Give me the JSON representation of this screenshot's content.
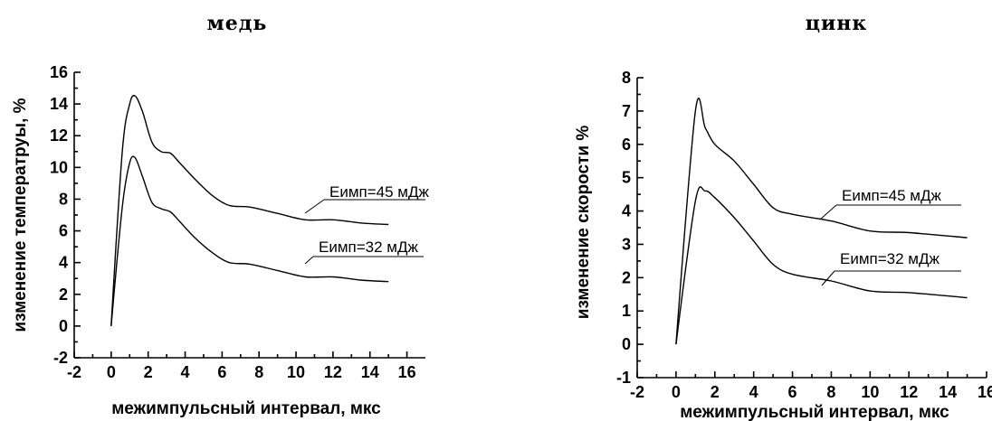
{
  "chart_data": [
    {
      "type": "line",
      "title": "медь",
      "xlabel": "межимпульсный интервал, мкс",
      "ylabel": "изменение температруы, %",
      "xlim": [
        -2,
        17
      ],
      "ylim": [
        -2,
        16
      ],
      "xticks": [
        -2,
        0,
        2,
        4,
        6,
        8,
        10,
        12,
        14,
        16
      ],
      "yticks": [
        -2,
        0,
        2,
        4,
        6,
        8,
        10,
        12,
        14,
        16
      ],
      "ytick_labels": [
        "-2",
        "0",
        "2",
        "4",
        "6",
        "8",
        "10",
        "12",
        "14",
        "16"
      ],
      "series": [
        {
          "name": "Еимп=45 мДж",
          "x": [
            0,
            0.6,
            1.0,
            1.3,
            1.7,
            2.2,
            2.7,
            3.2,
            3.7,
            4.5,
            5.5,
            6.4,
            7.5,
            9.0,
            10.5,
            12.0,
            13.5,
            15.0
          ],
          "y": [
            0,
            11.0,
            14.0,
            14.5,
            13.5,
            11.6,
            11.0,
            10.9,
            10.3,
            9.3,
            8.2,
            7.6,
            7.5,
            7.1,
            6.7,
            6.7,
            6.5,
            6.4
          ]
        },
        {
          "name": "Еимп=32 мДж",
          "x": [
            0,
            0.6,
            1.0,
            1.3,
            1.7,
            2.2,
            2.7,
            3.2,
            3.7,
            4.5,
            5.5,
            6.4,
            7.5,
            9.0,
            10.5,
            12.0,
            13.5,
            15.0
          ],
          "y": [
            0,
            7.5,
            10.3,
            10.6,
            9.4,
            7.8,
            7.4,
            7.2,
            6.6,
            5.6,
            4.6,
            4.0,
            3.9,
            3.5,
            3.1,
            3.1,
            2.9,
            2.8
          ]
        }
      ],
      "annotations": [
        {
          "text": "Еимп=45 мДж",
          "x": 14.0,
          "y": 8.6
        },
        {
          "text": "Еимп=32 мДж",
          "x": 13.6,
          "y": 5.1
        }
      ]
    },
    {
      "type": "line",
      "title": "цинк",
      "xlabel": "межимпульсный интервал, мкс",
      "ylabel": "изменение скорости %",
      "xlim": [
        -2,
        16
      ],
      "ylim": [
        -1,
        8
      ],
      "xticks": [
        -2,
        0,
        2,
        4,
        6,
        8,
        10,
        12,
        14,
        16
      ],
      "yticks": [
        -1,
        0,
        1,
        2,
        3,
        4,
        5,
        6,
        7,
        8
      ],
      "ytick_labels": [
        "-1",
        "0",
        "1",
        "2",
        "3",
        "4",
        "5",
        "6",
        "7",
        "8"
      ],
      "series": [
        {
          "name": "Еимп=45 мДж",
          "x": [
            0,
            1.0,
            1.5,
            2.0,
            3.0,
            4.0,
            5.0,
            6.0,
            8.0,
            10.0,
            12.0,
            15.0
          ],
          "y": [
            0,
            7.0,
            6.5,
            6.0,
            5.5,
            4.8,
            4.1,
            3.9,
            3.7,
            3.4,
            3.35,
            3.2
          ]
        },
        {
          "name": "Еимп=32 мДж",
          "x": [
            0,
            1.0,
            1.5,
            2.0,
            3.0,
            4.0,
            5.0,
            6.0,
            8.0,
            10.0,
            12.0,
            15.0
          ],
          "y": [
            0,
            4.3,
            4.6,
            4.4,
            3.8,
            3.1,
            2.4,
            2.1,
            1.9,
            1.6,
            1.55,
            1.4
          ]
        }
      ],
      "annotations": [
        {
          "text": "Еимп=45 мДж",
          "x": 13.0,
          "y": 5.0
        },
        {
          "text": "Еимп=32 мДж",
          "x": 12.8,
          "y": 2.6
        }
      ]
    }
  ]
}
